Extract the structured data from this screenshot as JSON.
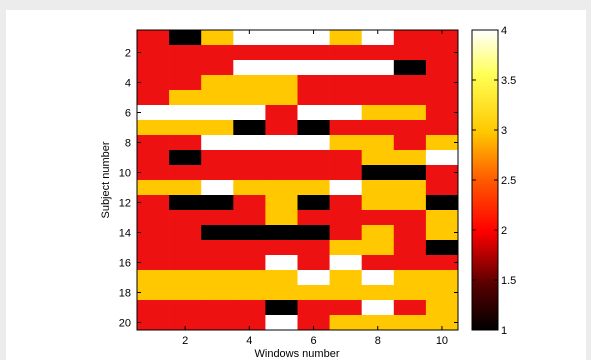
{
  "chart_data": {
    "type": "heatmap",
    "xlabel": "Windows number",
    "ylabel": "Subject number",
    "x_ticks": [
      2,
      4,
      6,
      8,
      10
    ],
    "y_ticks": [
      2,
      4,
      6,
      8,
      10,
      12,
      14,
      16,
      18,
      20
    ],
    "xlim": [
      0.5,
      10.5
    ],
    "ylim": [
      0.5,
      20.5
    ],
    "colorbar": {
      "min": 1,
      "max": 4,
      "ticks": [
        1,
        1.5,
        2,
        2.5,
        3,
        3.5,
        4
      ],
      "colormap": "hot"
    },
    "values": [
      [
        2,
        1,
        3,
        4,
        4,
        4,
        3,
        4,
        2,
        2
      ],
      [
        2,
        2,
        2,
        2,
        2,
        2,
        2,
        2,
        2,
        2
      ],
      [
        2,
        2,
        2,
        4,
        4,
        4,
        4,
        4,
        1,
        2
      ],
      [
        2,
        2,
        3,
        3,
        3,
        2,
        2,
        2,
        2,
        2
      ],
      [
        2,
        3,
        3,
        3,
        3,
        2,
        2,
        2,
        2,
        2
      ],
      [
        4,
        4,
        4,
        4,
        2,
        4,
        4,
        3,
        3,
        2
      ],
      [
        3,
        3,
        3,
        1,
        2,
        1,
        2,
        2,
        2,
        2
      ],
      [
        2,
        2,
        4,
        4,
        4,
        4,
        3,
        3,
        2,
        3
      ],
      [
        2,
        1,
        2,
        2,
        2,
        2,
        2,
        3,
        3,
        4
      ],
      [
        2,
        2,
        2,
        2,
        2,
        2,
        2,
        1,
        1,
        2
      ],
      [
        3,
        3,
        4,
        3,
        3,
        3,
        4,
        3,
        3,
        2
      ],
      [
        2,
        1,
        1,
        2,
        3,
        1,
        2,
        3,
        3,
        1
      ],
      [
        2,
        2,
        2,
        2,
        3,
        2,
        2,
        2,
        2,
        3
      ],
      [
        2,
        2,
        1,
        1,
        1,
        1,
        2,
        3,
        2,
        3
      ],
      [
        2,
        2,
        2,
        2,
        2,
        2,
        3,
        3,
        2,
        1
      ],
      [
        2,
        2,
        2,
        2,
        4,
        2,
        4,
        2,
        2,
        2
      ],
      [
        3,
        3,
        3,
        3,
        3,
        4,
        3,
        4,
        3,
        3
      ],
      [
        3,
        3,
        3,
        3,
        3,
        3,
        3,
        3,
        3,
        3
      ],
      [
        2,
        2,
        2,
        2,
        1,
        2,
        2,
        4,
        2,
        3
      ],
      [
        2,
        2,
        2,
        2,
        4,
        2,
        3,
        3,
        3,
        3
      ]
    ]
  },
  "colors": {
    "1": "#000000",
    "2": "#ee1111",
    "3": "#ffc800",
    "4": "#ffffff",
    "figure_background": "#ececec",
    "axes_background": "#ffffff"
  }
}
